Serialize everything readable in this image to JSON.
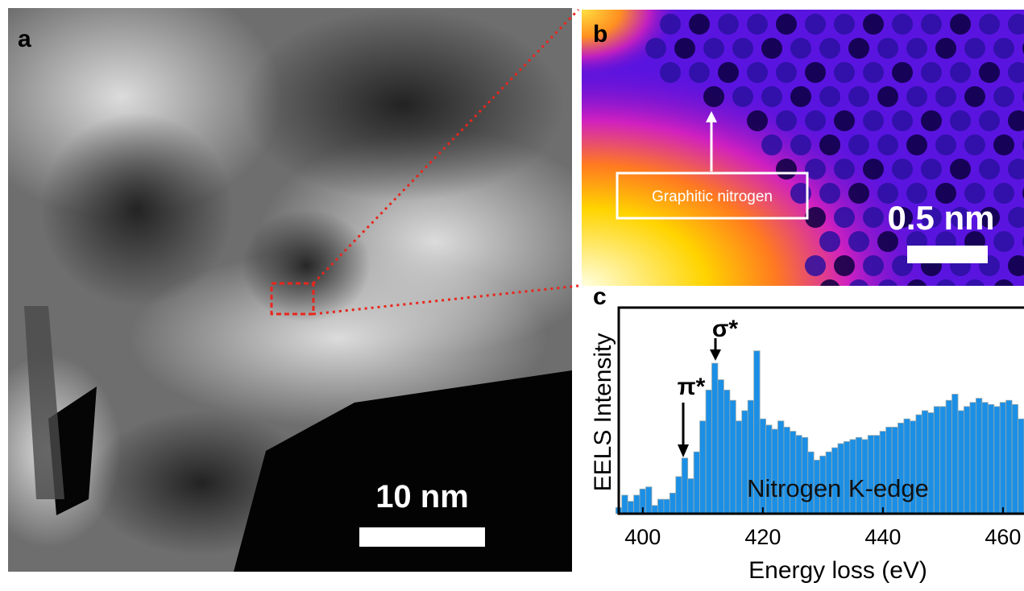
{
  "panels": {
    "a": {
      "label": "a",
      "scale_bar": "10 nm"
    },
    "b": {
      "label": "b",
      "scale_bar": "0.5 nm",
      "annotation": "Graphitic nitrogen"
    }
  },
  "chart_data": {
    "type": "bar",
    "label": "c",
    "xlabel": "Energy loss (eV)",
    "ylabel": "EELS Intensity",
    "annotations": [
      "π*",
      "σ*",
      "Nitrogen K-edge"
    ],
    "x": [
      396,
      397,
      398,
      399,
      400,
      401,
      402,
      403,
      404,
      405,
      406,
      407,
      408,
      409,
      410,
      411,
      412,
      413,
      414,
      415,
      416,
      417,
      418,
      419,
      420,
      421,
      422,
      423,
      424,
      425,
      426,
      427,
      428,
      429,
      430,
      431,
      432,
      433,
      434,
      435,
      436,
      437,
      438,
      439,
      440,
      441,
      442,
      443,
      444,
      445,
      446,
      447,
      448,
      449,
      450,
      451,
      452,
      453,
      454,
      455,
      456,
      457,
      458,
      459,
      460,
      461,
      462,
      463
    ],
    "series": [
      {
        "name": "Nitrogen K-edge",
        "color": "#1b8fe6",
        "values": [
          3,
          9,
          6,
          9,
          12,
          13,
          4,
          7,
          7,
          10,
          18,
          27,
          17,
          30,
          45,
          60,
          73,
          65,
          60,
          55,
          45,
          50,
          55,
          79,
          46,
          43,
          41,
          45,
          42,
          40,
          38,
          37,
          30,
          26,
          28,
          30,
          32,
          34,
          35,
          36,
          37,
          36,
          38,
          38,
          40,
          42,
          42,
          44,
          46,
          45,
          48,
          50,
          49,
          52,
          52,
          55,
          58,
          50,
          52,
          54,
          56,
          54,
          53,
          52,
          54,
          55,
          53,
          46
        ]
      }
    ],
    "xlim": [
      396,
      463.5
    ],
    "ylim": [
      0,
      100
    ],
    "xticks": [
      400,
      420,
      440,
      460
    ]
  }
}
